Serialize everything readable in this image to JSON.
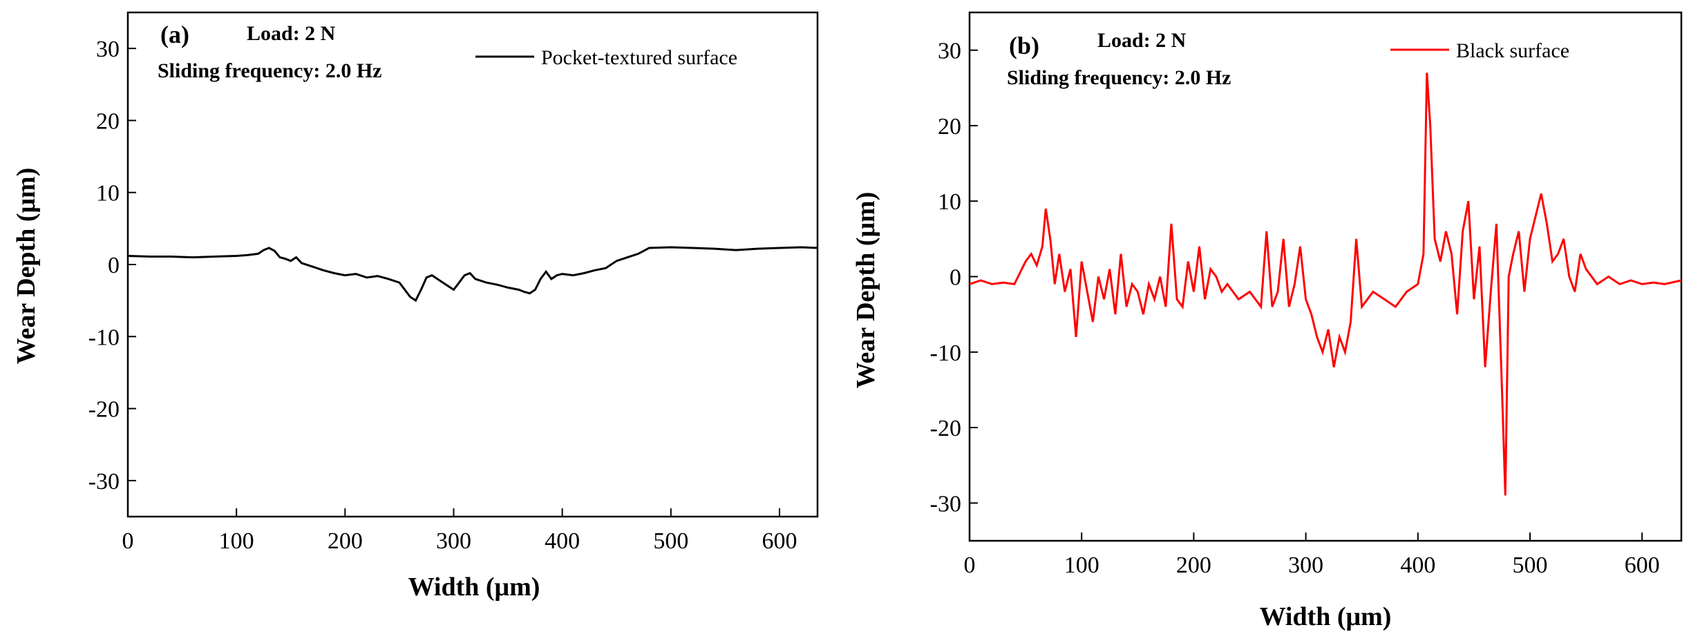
{
  "chart_data": [
    {
      "type": "line",
      "panel_label": "(a)",
      "annotations": {
        "load": "Load: 2 N",
        "frequency": "Sliding frequency: 2.0 Hz"
      },
      "xlabel": "Width (μm)",
      "ylabel": "Wear Depth (μm)",
      "xlim": [
        0,
        635
      ],
      "ylim": [
        -35,
        35
      ],
      "xticks": [
        0,
        100,
        200,
        300,
        400,
        500,
        600
      ],
      "yticks": [
        -30,
        -20,
        -10,
        0,
        10,
        20,
        30
      ],
      "legend_position": "top-right",
      "color": "#000000",
      "series": [
        {
          "name": "Pocket-textured surface",
          "x": [
            0,
            20,
            40,
            60,
            80,
            100,
            110,
            120,
            125,
            130,
            135,
            140,
            145,
            150,
            155,
            160,
            170,
            180,
            190,
            200,
            210,
            220,
            230,
            240,
            250,
            255,
            260,
            265,
            270,
            275,
            280,
            285,
            290,
            295,
            300,
            305,
            310,
            315,
            320,
            330,
            340,
            350,
            360,
            365,
            370,
            375,
            380,
            385,
            390,
            395,
            400,
            410,
            420,
            430,
            440,
            450,
            460,
            470,
            480,
            500,
            520,
            540,
            560,
            580,
            600,
            620,
            635
          ],
          "y": [
            1.2,
            1.1,
            1.1,
            1.0,
            1.1,
            1.2,
            1.3,
            1.5,
            2.0,
            2.3,
            1.9,
            1.0,
            0.8,
            0.5,
            1.0,
            0.2,
            -0.3,
            -0.8,
            -1.2,
            -1.5,
            -1.3,
            -1.8,
            -1.6,
            -2.0,
            -2.5,
            -3.5,
            -4.5,
            -5.0,
            -3.5,
            -1.8,
            -1.5,
            -2.0,
            -2.5,
            -3.0,
            -3.5,
            -2.5,
            -1.5,
            -1.2,
            -2.0,
            -2.5,
            -2.8,
            -3.2,
            -3.5,
            -3.8,
            -4.0,
            -3.5,
            -2.0,
            -1.0,
            -2.0,
            -1.5,
            -1.3,
            -1.5,
            -1.2,
            -0.8,
            -0.5,
            0.5,
            1.0,
            1.5,
            2.3,
            2.4,
            2.3,
            2.2,
            2.0,
            2.2,
            2.3,
            2.4,
            2.3
          ]
        }
      ]
    },
    {
      "type": "line",
      "panel_label": "(b)",
      "annotations": {
        "load": "Load: 2 N",
        "frequency": "Sliding frequency: 2.0 Hz"
      },
      "xlabel": "Width (μm)",
      "ylabel": "Wear Depth (μm)",
      "xlim": [
        0,
        635
      ],
      "ylim": [
        -35,
        35
      ],
      "xticks": [
        0,
        100,
        200,
        300,
        400,
        500,
        600
      ],
      "yticks": [
        -30,
        -20,
        -10,
        0,
        10,
        20,
        30
      ],
      "legend_position": "top-right",
      "color": "#ff0000",
      "series": [
        {
          "name": "Black surface",
          "x": [
            0,
            10,
            20,
            30,
            40,
            50,
            55,
            60,
            65,
            68,
            72,
            76,
            80,
            85,
            90,
            95,
            100,
            105,
            110,
            115,
            120,
            125,
            130,
            135,
            140,
            145,
            150,
            155,
            160,
            165,
            170,
            175,
            180,
            185,
            190,
            195,
            200,
            205,
            210,
            215,
            220,
            225,
            230,
            240,
            250,
            260,
            265,
            270,
            275,
            280,
            285,
            290,
            295,
            300,
            305,
            310,
            315,
            320,
            325,
            330,
            335,
            340,
            345,
            350,
            355,
            360,
            370,
            380,
            390,
            400,
            405,
            408,
            411,
            415,
            420,
            425,
            430,
            435,
            440,
            445,
            450,
            455,
            460,
            465,
            470,
            475,
            478,
            481,
            485,
            490,
            495,
            500,
            505,
            510,
            515,
            520,
            525,
            530,
            535,
            540,
            545,
            550,
            560,
            570,
            580,
            590,
            600,
            610,
            620,
            635
          ],
          "y": [
            -1,
            -0.5,
            -1,
            -0.8,
            -1,
            2,
            3,
            1.5,
            4,
            9,
            5,
            -1,
            3,
            -2,
            1,
            -8,
            2,
            -2,
            -6,
            0,
            -3,
            1,
            -5,
            3,
            -4,
            -1,
            -2,
            -5,
            -1,
            -3,
            0,
            -4,
            7,
            -3,
            -4,
            2,
            -2,
            4,
            -3,
            1,
            0,
            -2,
            -1,
            -3,
            -2,
            -4,
            6,
            -4,
            -2,
            5,
            -4,
            -1,
            4,
            -3,
            -5,
            -8,
            -10,
            -7,
            -12,
            -8,
            -10,
            -6,
            5,
            -4,
            -3,
            -2,
            -3,
            -4,
            -2,
            -1,
            3,
            27,
            20,
            5,
            2,
            6,
            3,
            -5,
            6,
            10,
            -3,
            4,
            -12,
            -2,
            7,
            -15,
            -29,
            0,
            3,
            6,
            -2,
            5,
            8,
            11,
            7,
            2,
            3,
            5,
            0,
            -2,
            3,
            1,
            -1,
            0,
            -1,
            -0.5,
            -1,
            -0.8,
            -1,
            -0.5
          ]
        }
      ]
    }
  ]
}
